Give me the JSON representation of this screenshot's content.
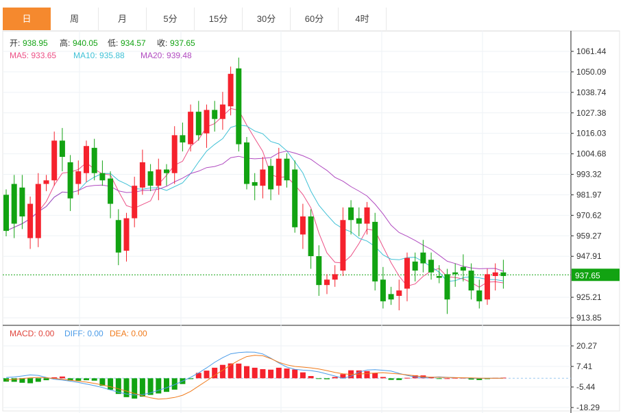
{
  "tabs": [
    "日",
    "周",
    "月",
    "5分",
    "15分",
    "30分",
    "60分",
    "4时"
  ],
  "active_tab": 0,
  "ohlc_info": {
    "open_label": "开:",
    "open": "938.95",
    "high_label": "高:",
    "high": "940.05",
    "low_label": "低:",
    "low": "934.57",
    "close_label": "收:",
    "close": "937.65"
  },
  "ma_info": {
    "ma5": "MA5: 933.65",
    "ma10": "MA10: 935.88",
    "ma20": "MA20: 939.48"
  },
  "macd_info": {
    "macd": "MACD: 0.00",
    "diff": "DIFF: 0.00",
    "dea": "DEA: 0.00"
  },
  "colors": {
    "up": "#f5222d",
    "down": "#12a312",
    "ma5": "#ec4f85",
    "ma10": "#3fc1d6",
    "ma20": "#b04ac0",
    "diff": "#4a9be8",
    "dea": "#f07a1a",
    "last_price_bg": "#12a312",
    "tab_active": "#f5892e"
  },
  "chart_data": [
    {
      "type": "candlestick",
      "y_tick_labels": [
        "1061.44",
        "1050.09",
        "1038.74",
        "1027.38",
        "1016.03",
        "1004.68",
        "993.32",
        "981.97",
        "970.62",
        "959.27",
        "947.91",
        "937.65",
        "925.21",
        "913.85"
      ],
      "ylim": [
        913.85,
        1061.44
      ],
      "last_price": 937.65,
      "candles": [
        {
          "o": 982,
          "c": 962
        },
        {
          "o": 988,
          "c": 966
        },
        {
          "o": 986,
          "c": 970
        },
        {
          "o": 958,
          "c": 977
        },
        {
          "o": 958,
          "c": 988
        },
        {
          "o": 988,
          "c": 990
        },
        {
          "o": 990,
          "c": 1012
        },
        {
          "o": 1012,
          "c": 1003
        },
        {
          "o": 1000,
          "c": 980
        },
        {
          "o": 988,
          "c": 995
        },
        {
          "o": 994,
          "c": 1009
        },
        {
          "o": 1008,
          "c": 994
        },
        {
          "o": 994,
          "c": 990
        },
        {
          "o": 991,
          "c": 977
        },
        {
          "o": 968,
          "c": 950
        },
        {
          "o": 951,
          "c": 969
        },
        {
          "o": 969,
          "c": 987
        },
        {
          "o": 986,
          "c": 1000
        },
        {
          "o": 995,
          "c": 987
        },
        {
          "o": 987,
          "c": 996
        },
        {
          "o": 996,
          "c": 994
        },
        {
          "o": 994,
          "c": 1015
        },
        {
          "o": 1015,
          "c": 1011
        },
        {
          "o": 1010,
          "c": 1028
        },
        {
          "o": 1028,
          "c": 1015
        },
        {
          "o": 1016,
          "c": 1029
        },
        {
          "o": 1029,
          "c": 1024
        },
        {
          "o": 1024,
          "c": 1032
        },
        {
          "o": 1031,
          "c": 1049
        },
        {
          "o": 1052,
          "c": 1010
        },
        {
          "o": 1011,
          "c": 988
        },
        {
          "o": 989,
          "c": 987
        },
        {
          "o": 987,
          "c": 996
        },
        {
          "o": 998,
          "c": 985
        },
        {
          "o": 987,
          "c": 1002
        },
        {
          "o": 1002,
          "c": 990
        },
        {
          "o": 996,
          "c": 964
        },
        {
          "o": 960,
          "c": 970
        },
        {
          "o": 970,
          "c": 948
        },
        {
          "o": 948,
          "c": 932
        },
        {
          "o": 932,
          "c": 935
        },
        {
          "o": 935,
          "c": 938
        },
        {
          "o": 940,
          "c": 968
        },
        {
          "o": 975,
          "c": 968
        },
        {
          "o": 969,
          "c": 966
        },
        {
          "o": 966,
          "c": 975
        },
        {
          "o": 967,
          "c": 934
        },
        {
          "o": 935,
          "c": 923
        },
        {
          "o": 927,
          "c": 924
        },
        {
          "o": 926,
          "c": 929
        },
        {
          "o": 930,
          "c": 947
        },
        {
          "o": 945,
          "c": 940
        },
        {
          "o": 950,
          "c": 944
        },
        {
          "o": 946,
          "c": 939
        },
        {
          "o": 937,
          "c": 936
        },
        {
          "o": 938,
          "c": 924
        },
        {
          "o": 939,
          "c": 938
        },
        {
          "o": 942,
          "c": 940
        },
        {
          "o": 940,
          "c": 929
        },
        {
          "o": 929,
          "c": 923
        },
        {
          "o": 924,
          "c": 938
        },
        {
          "o": 937,
          "c": 939
        },
        {
          "o": 939,
          "c": 937
        }
      ]
    },
    {
      "type": "macd",
      "y_tick_labels": [
        "20.27",
        "7.41",
        "-5.44",
        "-18.29"
      ],
      "ylim": [
        -18.29,
        20.27
      ],
      "histogram": [
        -2.1,
        -2.2,
        -2.8,
        -3.1,
        -2.2,
        -1.2,
        0.6,
        1.1,
        -1.4,
        -1.5,
        -1.2,
        -1.5,
        -4.7,
        -7.2,
        -9.8,
        -11.8,
        -12.7,
        -11.5,
        -10.4,
        -9.5,
        -8.5,
        -7.1,
        -3.6,
        -0.5,
        3.4,
        4.8,
        6.6,
        8.4,
        9.3,
        9.2,
        7.6,
        6.6,
        5.7,
        5.4,
        6.6,
        6.1,
        5.5,
        3.7,
        1.4,
        -0.3,
        -0.6,
        0.8,
        2.6,
        5.0,
        4.9,
        4.5,
        3.3,
        0.8,
        -1.0,
        -1.1,
        0.3,
        1.9,
        1.8,
        0.9,
        -0.2,
        0.0,
        0.3,
        0.3,
        -0.8,
        -1.1,
        -0.5,
        0.3,
        0.4
      ],
      "diff": [
        0.5,
        0.8,
        1.4,
        2.1,
        1.8,
        0.5,
        -0.6,
        -1.1,
        -1.8,
        -2.6,
        -3.6,
        -4.6,
        -5.8,
        -7.3,
        -8.7,
        -9.8,
        -10.4,
        -10.2,
        -9.1,
        -7.5,
        -5.9,
        -4.0,
        -1.8,
        0.6,
        3.4,
        6.5,
        10.0,
        12.9,
        15.3,
        16.1,
        16.4,
        16.3,
        15.2,
        12.6,
        9.6,
        7.0,
        5.6,
        5.1,
        4.8,
        4.0,
        2.7,
        1.4,
        0.0,
        1.3,
        3.9,
        5.2,
        5.4,
        5.0,
        4.5,
        3.1,
        1.8,
        0.8,
        0.4,
        0.6,
        0.9,
        0.6,
        0.4,
        0.2,
        0.0,
        -0.1,
        0.0,
        0.0,
        0.0
      ],
      "dea": [
        -1.1,
        -0.7,
        -0.2,
        0.3,
        0.5,
        0.3,
        -0.1,
        -0.6,
        -1.2,
        -1.8,
        -2.4,
        -3.2,
        -4.2,
        -5.3,
        -6.6,
        -8.0,
        -9.5,
        -10.9,
        -12.2,
        -13.0,
        -12.7,
        -12.0,
        -10.6,
        -8.2,
        -4.9,
        -1.6,
        1.8,
        5.1,
        8.3,
        11.2,
        13.6,
        14.4,
        14.1,
        12.3,
        10.0,
        8.4,
        7.4,
        7.0,
        6.5,
        5.8,
        4.8,
        3.7,
        2.8,
        2.5,
        2.6,
        3.0,
        3.3,
        3.5,
        3.1,
        2.7,
        2.2,
        1.6,
        1.0,
        0.7,
        0.6,
        0.5,
        0.4,
        0.3,
        0.2,
        0.1,
        0.0,
        0.0,
        0.0
      ]
    }
  ]
}
